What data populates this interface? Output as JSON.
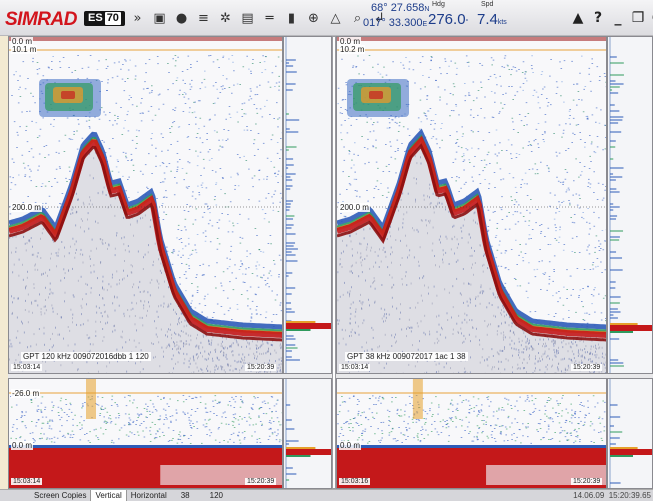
{
  "toolbar": {
    "brand": "SIMRAD",
    "model_prefix": "ES",
    "model_number": "70",
    "icons": [
      "double-chevron-icon",
      "camera-icon",
      "record-icon",
      "layers-icon",
      "fan-icon",
      "echogram-icon",
      "bars-icon",
      "chart-icon",
      "target-icon",
      "warning-triangle-icon",
      "search-icon",
      "pin-icon"
    ],
    "lat_value": "68° 27.658",
    "lat_hemi": "N",
    "lon_value": "017° 33.300",
    "lon_hemi": "E",
    "hdg_label": "Hdg",
    "hdg_value": "276.0",
    "hdg_unit": "°",
    "spd_label": "Spd",
    "spd_value": "7.4",
    "spd_unit": "kts",
    "sys_icons": [
      "alarm-icon",
      "help-icon",
      "minimize-icon",
      "restore-icon",
      "power-icon"
    ]
  },
  "left_channel": {
    "top_range": "0.0 m",
    "surface_range": "10.1 m",
    "mid_depth": "200.0 m",
    "info": "GPT 120 kHz 009072016dbb 1 120",
    "start_time": "15:03:14",
    "end_time": "15:20:39",
    "zoom_top": "-26.0 m",
    "zoom_zero": "0.0 m",
    "zoom_start_time": "15:03:14",
    "zoom_end_time": "15:20:39"
  },
  "right_channel": {
    "top_range": "0.0 m",
    "surface_range": "10.2 m",
    "mid_depth": "200.0 m",
    "info": "GPT  38 kHz 009072017 1ac 1 38",
    "start_time": "15:03:14",
    "end_time": "15:20:39",
    "zoom_zero": "0.0 m",
    "zoom_start_time": "15:03:16",
    "zoom_end_time": "15:20:39"
  },
  "bottombar": {
    "tabs": [
      "Screen Copies",
      "Vertical",
      "Horizontal"
    ],
    "active_tab": "Vertical",
    "num1": "38",
    "num2": "120",
    "date": "14.06.09",
    "time": "15:20:39.65"
  },
  "colors": {
    "brand_red": "#d2141c",
    "nav_blue": "#1c3c8a",
    "echo_red": "#c4181a",
    "echo_blue": "#2d5bb8",
    "surface_line": "#e8a23a"
  }
}
